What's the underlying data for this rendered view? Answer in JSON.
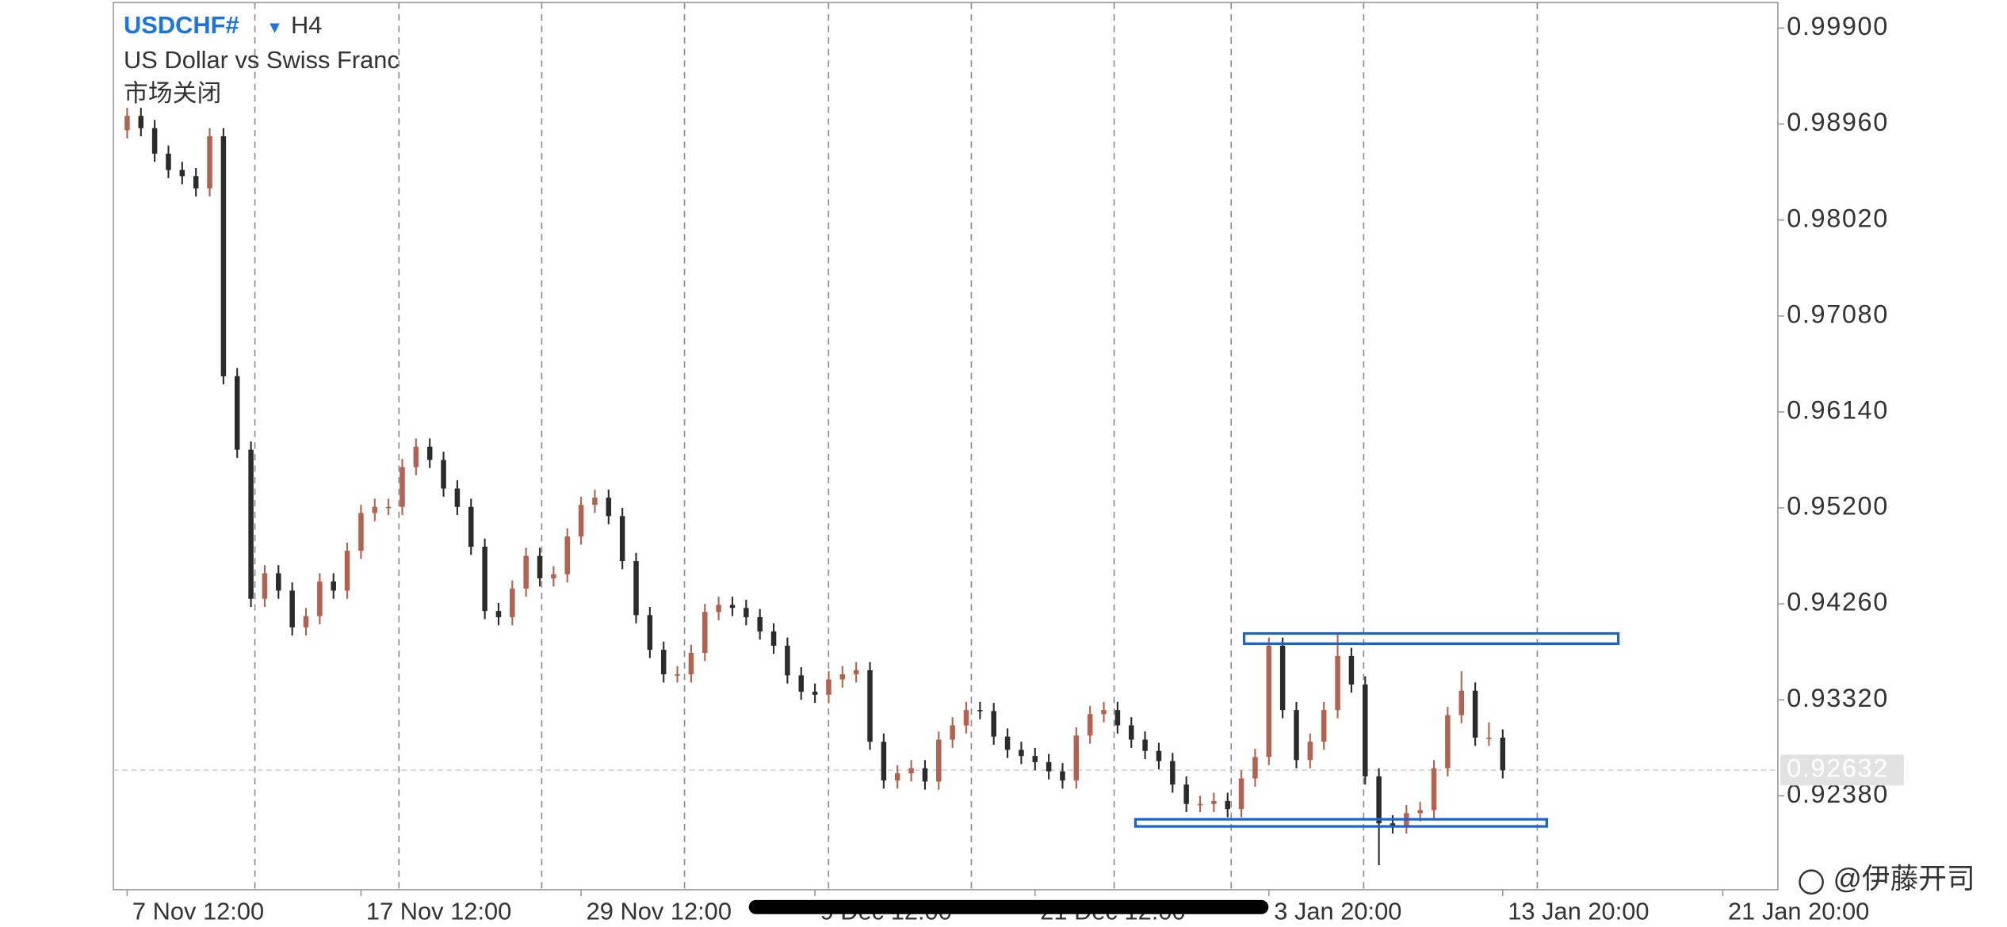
{
  "header": {
    "symbol": "USDCHF#",
    "symbol_menu": "▼",
    "timeframe": "H4",
    "description": "US Dollar vs Swiss Franc",
    "status": "市场关闭"
  },
  "watermark": "@伊藤开司",
  "chart_data": {
    "type": "ohlc",
    "up_color": "#b5614f",
    "down_color": "#2b2b2b",
    "open": [
      0.989,
      0.9904,
      0.9892,
      0.9867,
      0.9851,
      0.9845,
      0.9833,
      0.9884,
      0.9649,
      0.9577,
      0.9431,
      0.9456,
      0.9439,
      0.9403,
      0.9414,
      0.9448,
      0.9439,
      0.9478,
      0.9515,
      0.9521,
      0.9521,
      0.956,
      0.958,
      0.9567,
      0.9539,
      0.9521,
      0.9482,
      0.9419,
      0.9413,
      0.9441,
      0.9473,
      0.9451,
      0.9455,
      0.9492,
      0.9523,
      0.953,
      0.9512,
      0.9468,
      0.9415,
      0.9381,
      0.9357,
      0.9357,
      0.9378,
      0.9418,
      0.9425,
      0.9422,
      0.9413,
      0.9399,
      0.9385,
      0.9356,
      0.934,
      0.9337,
      0.9352,
      0.9357,
      0.9361,
      0.9291,
      0.9253,
      0.926,
      0.9265,
      0.9252,
      0.9293,
      0.9307,
      0.9322,
      0.9321,
      0.9296,
      0.9283,
      0.9277,
      0.9271,
      0.9262,
      0.9253,
      0.9297,
      0.9318,
      0.9322,
      0.9307,
      0.9293,
      0.9282,
      0.9272,
      0.9249,
      0.923,
      0.923,
      0.9233,
      0.9225,
      0.9255,
      0.9276,
      0.9385,
      0.9322,
      0.9273,
      0.9291,
      0.9322,
      0.9375,
      0.9347,
      0.9257,
      0.9211,
      0.9209,
      0.9221,
      0.9224,
      0.9265,
      0.9317,
      0.9341,
      0.9295,
      0.9295
    ],
    "high": [
      0.9912,
      0.9912,
      0.99,
      0.9875,
      0.9859,
      0.9853,
      0.9892,
      0.9892,
      0.9657,
      0.9585,
      0.9464,
      0.9464,
      0.9447,
      0.9422,
      0.9456,
      0.9456,
      0.9486,
      0.9523,
      0.9529,
      0.9529,
      0.9568,
      0.9588,
      0.9588,
      0.9575,
      0.9547,
      0.9529,
      0.949,
      0.9427,
      0.9449,
      0.9481,
      0.9481,
      0.9463,
      0.95,
      0.9531,
      0.9538,
      0.9538,
      0.952,
      0.9476,
      0.9423,
      0.9389,
      0.9365,
      0.9386,
      0.9426,
      0.9433,
      0.9433,
      0.943,
      0.9421,
      0.9407,
      0.9393,
      0.9364,
      0.9348,
      0.936,
      0.9365,
      0.9369,
      0.9369,
      0.9299,
      0.9268,
      0.9273,
      0.9273,
      0.9301,
      0.9315,
      0.933,
      0.933,
      0.9329,
      0.9304,
      0.9291,
      0.9285,
      0.9279,
      0.927,
      0.9305,
      0.9326,
      0.933,
      0.933,
      0.9315,
      0.9301,
      0.929,
      0.928,
      0.9257,
      0.9238,
      0.9241,
      0.9241,
      0.9263,
      0.9284,
      0.9393,
      0.9393,
      0.933,
      0.9299,
      0.933,
      0.9397,
      0.9383,
      0.9355,
      0.9265,
      0.9219,
      0.9229,
      0.9232,
      0.9273,
      0.9325,
      0.936,
      0.9349,
      0.931,
      0.9303
    ],
    "low": [
      0.9882,
      0.9884,
      0.9859,
      0.9843,
      0.9837,
      0.9825,
      0.9825,
      0.9641,
      0.9569,
      0.9423,
      0.9423,
      0.9431,
      0.9395,
      0.9395,
      0.9406,
      0.9431,
      0.9431,
      0.947,
      0.9507,
      0.9513,
      0.9513,
      0.9552,
      0.9559,
      0.9531,
      0.9513,
      0.9474,
      0.9411,
      0.9405,
      0.9405,
      0.9433,
      0.9443,
      0.9443,
      0.9447,
      0.9484,
      0.9515,
      0.9504,
      0.946,
      0.9407,
      0.9373,
      0.9349,
      0.9349,
      0.9349,
      0.937,
      0.941,
      0.9414,
      0.9405,
      0.9391,
      0.9377,
      0.9348,
      0.9332,
      0.9329,
      0.9329,
      0.9344,
      0.9349,
      0.9283,
      0.9245,
      0.9245,
      0.9252,
      0.9244,
      0.9244,
      0.9285,
      0.9299,
      0.9313,
      0.9288,
      0.9275,
      0.9269,
      0.9263,
      0.9254,
      0.9245,
      0.9245,
      0.9289,
      0.931,
      0.9299,
      0.9285,
      0.9274,
      0.9264,
      0.9241,
      0.9222,
      0.9222,
      0.9222,
      0.9217,
      0.9217,
      0.9247,
      0.9268,
      0.9314,
      0.9265,
      0.9265,
      0.9283,
      0.9314,
      0.9339,
      0.9249,
      0.917,
      0.9201,
      0.9201,
      0.9213,
      0.9216,
      0.9257,
      0.9309,
      0.9287,
      0.9287,
      0.9255
    ],
    "close": [
      0.9904,
      0.9892,
      0.9867,
      0.9851,
      0.9845,
      0.9833,
      0.9884,
      0.9649,
      0.9577,
      0.9431,
      0.9456,
      0.9439,
      0.9403,
      0.9414,
      0.9448,
      0.9439,
      0.9478,
      0.9515,
      0.9521,
      0.9521,
      0.956,
      0.958,
      0.9567,
      0.9539,
      0.9521,
      0.9482,
      0.9419,
      0.9413,
      0.9441,
      0.9473,
      0.9451,
      0.9455,
      0.9492,
      0.9523,
      0.953,
      0.9512,
      0.9468,
      0.9415,
      0.9381,
      0.9357,
      0.9357,
      0.9378,
      0.9418,
      0.9425,
      0.9422,
      0.9413,
      0.9399,
      0.9385,
      0.9356,
      0.934,
      0.9337,
      0.9352,
      0.9357,
      0.9361,
      0.9291,
      0.9253,
      0.926,
      0.9265,
      0.9252,
      0.9293,
      0.9307,
      0.9322,
      0.9321,
      0.9296,
      0.9283,
      0.9277,
      0.9271,
      0.9262,
      0.9253,
      0.9297,
      0.9318,
      0.9322,
      0.9307,
      0.9293,
      0.9282,
      0.9272,
      0.9249,
      0.923,
      0.923,
      0.9233,
      0.9225,
      0.9255,
      0.9276,
      0.9385,
      0.9322,
      0.9273,
      0.9291,
      0.9322,
      0.9375,
      0.9347,
      0.9257,
      0.9211,
      0.9209,
      0.9221,
      0.9224,
      0.9265,
      0.9317,
      0.9341,
      0.9295,
      0.9295,
      0.9263
    ],
    "xlim": [
      -1,
      120
    ],
    "xticks": [
      {
        "value": 0,
        "label": "7 Nov 12:00"
      },
      {
        "value": 17,
        "label": "17 Nov 12:00"
      },
      {
        "value": 33,
        "label": "29 Nov 12:00"
      },
      {
        "value": 50,
        "label": "9 Dec 12:00"
      },
      {
        "value": 66,
        "label": "21 Dec 12:00"
      },
      {
        "value": 83,
        "label": "3 Jan 20:00"
      },
      {
        "value": 100,
        "label": "13 Jan 20:00"
      },
      {
        "value": 116,
        "label": "21 Jan 20:00"
      }
    ],
    "ylim": [
      0.9146,
      1.0015
    ],
    "yticks": [
      {
        "value": 0.999,
        "label": "0.99900"
      },
      {
        "value": 0.9896,
        "label": "0.98960"
      },
      {
        "value": 0.9802,
        "label": "0.98020"
      },
      {
        "value": 0.9708,
        "label": "0.97080"
      },
      {
        "value": 0.9614,
        "label": "0.96140"
      },
      {
        "value": 0.952,
        "label": "0.95200"
      },
      {
        "value": 0.9426,
        "label": "0.94260"
      },
      {
        "value": 0.9332,
        "label": "0.93320"
      },
      {
        "value": 0.9238,
        "label": "0.92380"
      }
    ],
    "current_price": {
      "value": 0.92632,
      "label": "0.92632"
    },
    "zones": [
      {
        "x": [
          81.2,
          108.4
        ],
        "y": [
          0.9387,
          0.9397
        ],
        "color": "#1a62d6"
      },
      {
        "x": [
          73.3,
          103.2
        ],
        "y": [
          0.9208,
          0.9215
        ],
        "color": "#1a62d6"
      }
    ]
  }
}
